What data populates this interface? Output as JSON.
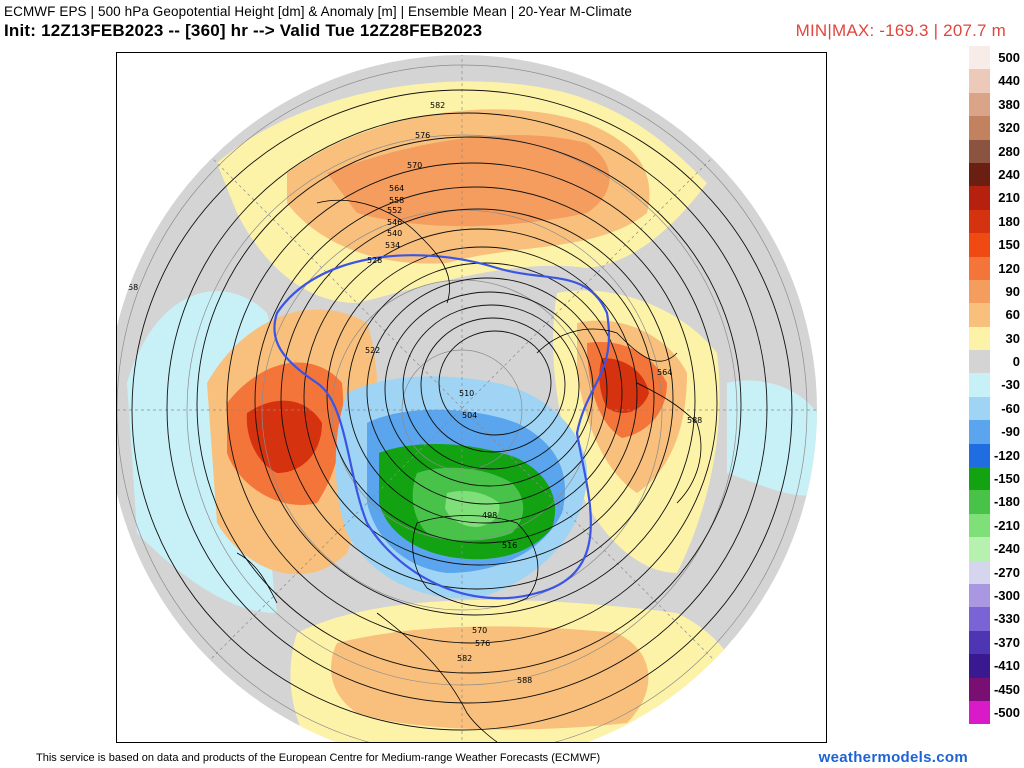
{
  "header": {
    "line1": "ECMWF EPS | 500 hPa Geopotential Height [dm] & Anomaly [m] | Ensemble Mean | 20-Year M-Climate",
    "line2": "Init: 12Z13FEB2023 -- [360] hr --> Valid Tue 12Z28FEB2023",
    "minmax": "MIN|MAX: -169.3 | 207.7 m",
    "minmax_color": "#e0463e"
  },
  "map": {
    "projection": "north-polar-stereographic",
    "background_color": "#d4d4d4",
    "contour_labels": [
      "588",
      "582",
      "576",
      "570",
      "564",
      "558",
      "552",
      "546",
      "540",
      "534",
      "528",
      "522",
      "510",
      "504",
      "498",
      "516",
      "570",
      "576",
      "582",
      "588",
      "588",
      "558",
      "564",
      "588",
      "588"
    ],
    "highlight_contour_color": "#3a55e6"
  },
  "colorbar": {
    "labels": [
      "500",
      "440",
      "380",
      "320",
      "280",
      "240",
      "210",
      "180",
      "150",
      "120",
      "90",
      "60",
      "30",
      "0",
      "-30",
      "-60",
      "-90",
      "-120",
      "-150",
      "-180",
      "-210",
      "-240",
      "-270",
      "-300",
      "-330",
      "-370",
      "-410",
      "-450",
      "-500"
    ],
    "colors": [
      "#f7ece8",
      "#ecc9b8",
      "#d9a487",
      "#c2825f",
      "#8a5440",
      "#6b1f13",
      "#b6200e",
      "#d5320f",
      "#ee4a12",
      "#f3753a",
      "#f59d5e",
      "#f8c07c",
      "#fdf3a8",
      "#d4d4d4",
      "#c8f0f7",
      "#9fd4f4",
      "#5aa5ee",
      "#1f6de0",
      "#12a212",
      "#49c24a",
      "#7fe07a",
      "#b7f1af",
      "#d5d5ee",
      "#a997e2",
      "#7a63d4",
      "#4d35b4",
      "#3a1890",
      "#7a0f73",
      "#d81ac9"
    ]
  },
  "footer": {
    "disclaimer": "This service is based on data and products of the European Centre for Medium-range Weather Forecasts (ECMWF)",
    "brand": "weathermodels.com",
    "brand_color": "#1e63d6"
  }
}
